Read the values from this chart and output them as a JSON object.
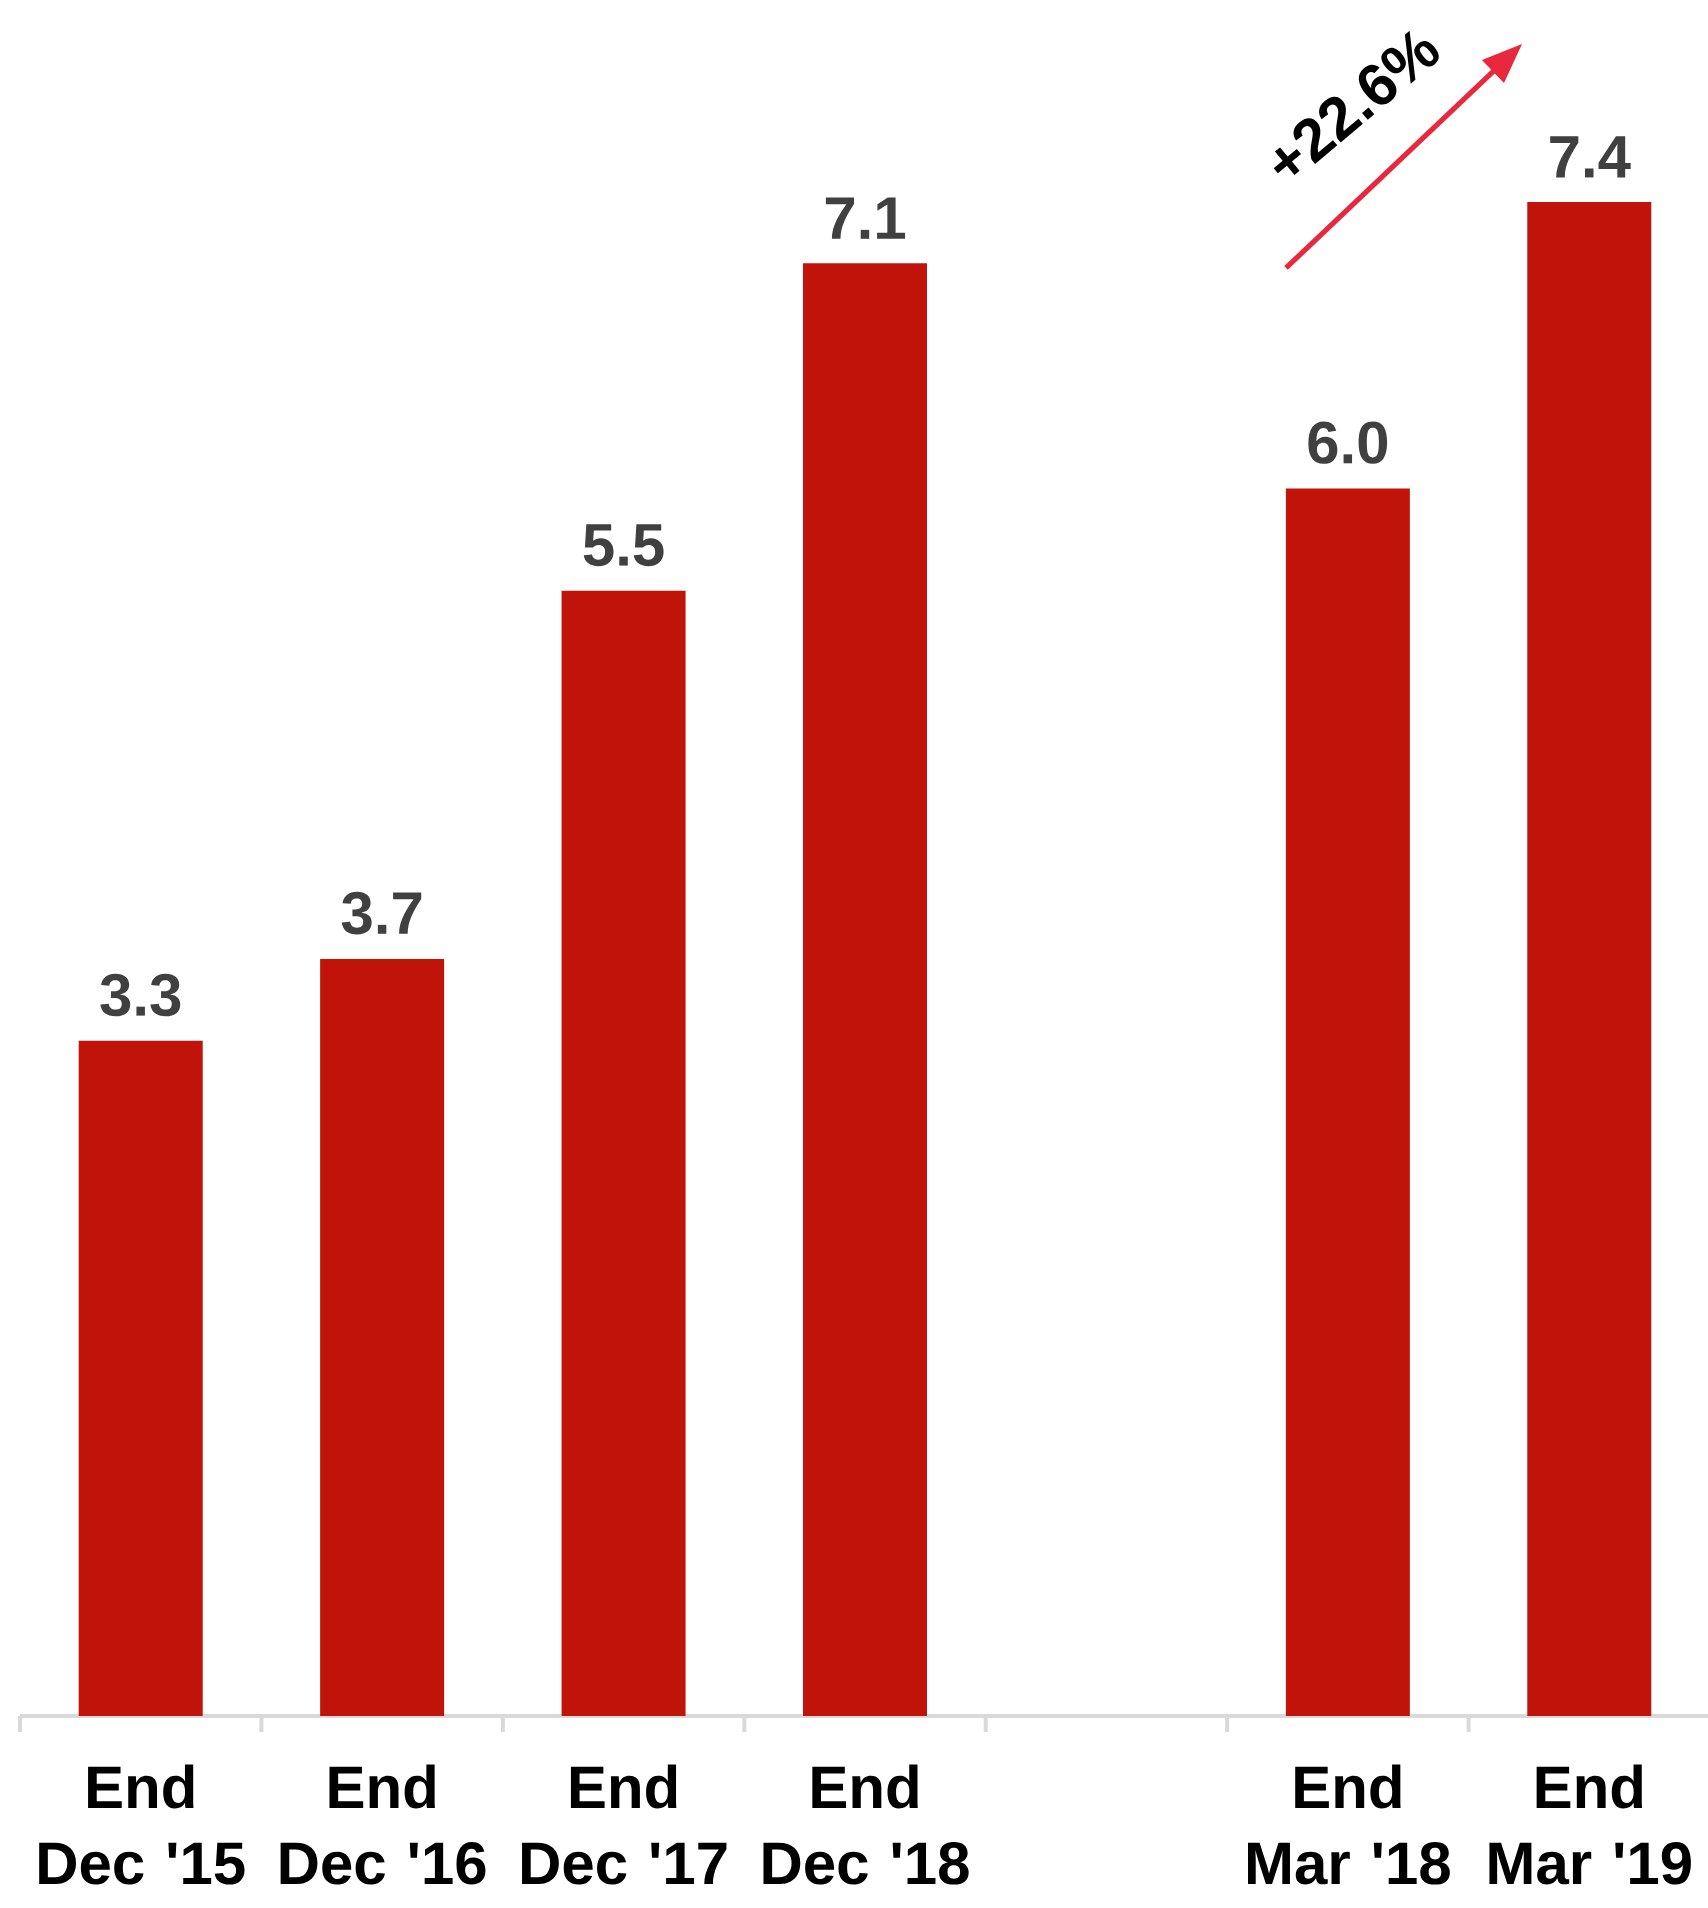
{
  "chart_data": {
    "type": "bar",
    "categories": [
      "End Dec '15",
      "End Dec '16",
      "End Dec '17",
      "End Dec '18",
      null,
      "End Mar '18",
      "End Mar '19"
    ],
    "values": [
      3.3,
      3.7,
      5.5,
      7.1,
      null,
      6.0,
      7.4
    ],
    "value_labels": [
      "3.3",
      "3.7",
      "5.5",
      "7.1",
      null,
      "6.0",
      "7.4"
    ],
    "color": "#c0140a",
    "annotations": [
      "+22.6%"
    ]
  }
}
